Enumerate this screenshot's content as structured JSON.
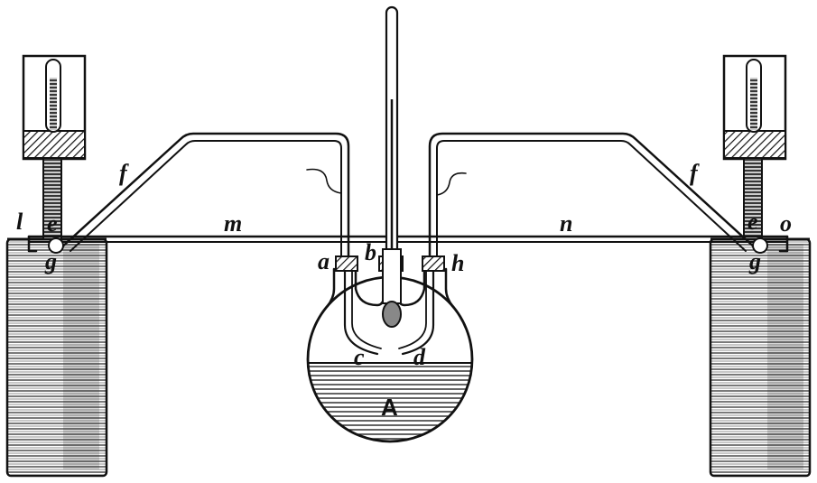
{
  "labels": {
    "l": "l",
    "e_left": "e",
    "g_left": "g",
    "f_left": "f",
    "m": "m",
    "a": "a",
    "b": "b",
    "h": "h",
    "c": "c",
    "d": "d",
    "A": "A",
    "n": "n",
    "f_right": "f",
    "e_right": "e",
    "g_right": "g",
    "o": "o"
  }
}
